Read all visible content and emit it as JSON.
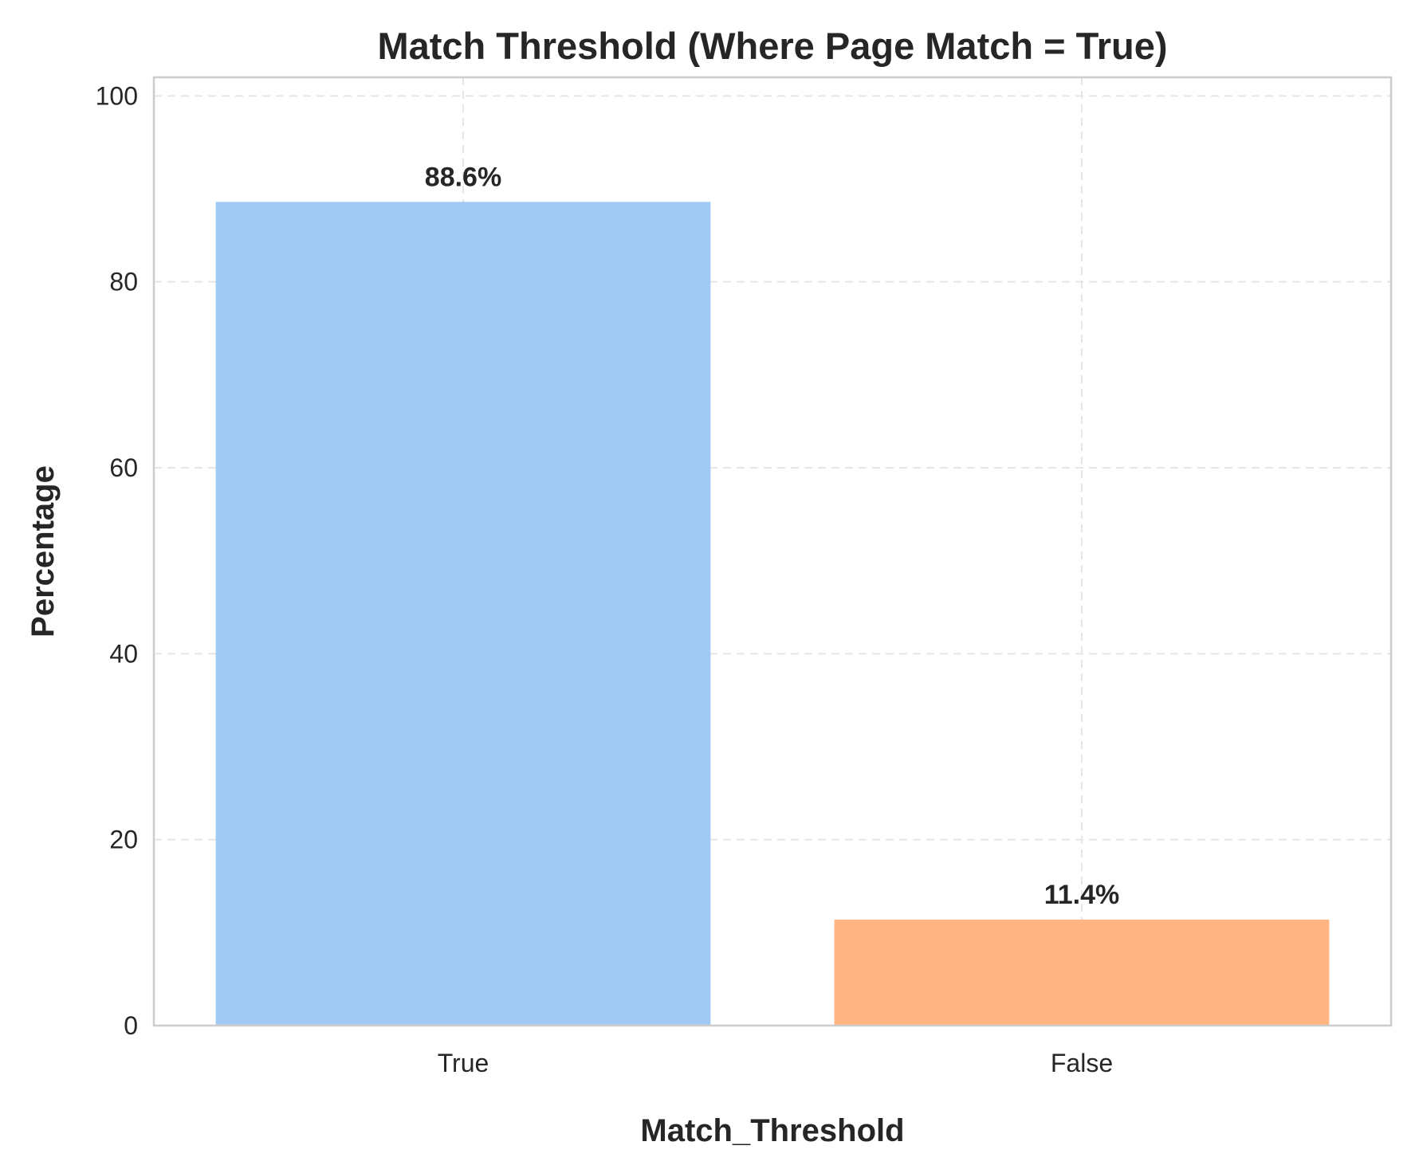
{
  "chart_data": {
    "type": "bar",
    "title": "Match Threshold (Where Page Match = True)",
    "xlabel": "Match_Threshold",
    "ylabel": "Percentage",
    "categories": [
      "True",
      "False"
    ],
    "values": [
      88.6,
      11.4
    ],
    "data_labels": [
      "88.6%",
      "11.4%"
    ],
    "colors": [
      "#a1c9f4",
      "#ffb482"
    ],
    "ylim": [
      0,
      102
    ],
    "yticks": [
      0,
      20,
      40,
      60,
      80,
      100
    ],
    "grid": true
  }
}
